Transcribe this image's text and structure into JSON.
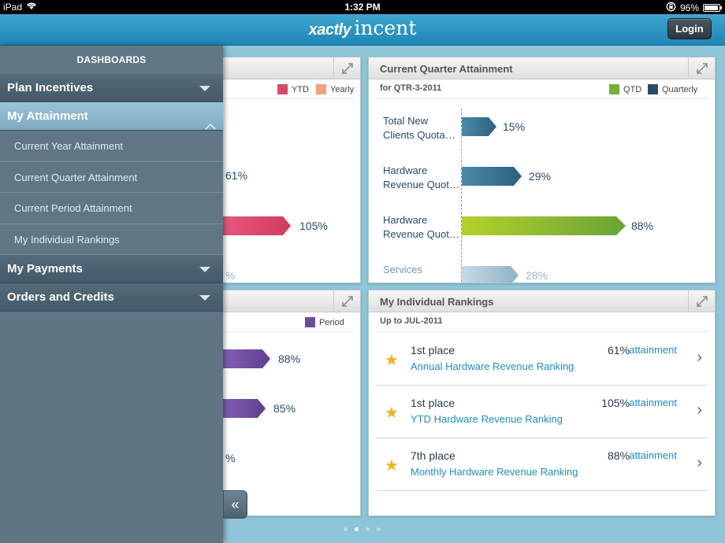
{
  "status": {
    "device": "iPad",
    "time": "1:32 PM",
    "battery": "96%"
  },
  "header": {
    "brand": "xactly",
    "product": "incent",
    "login_label": "Login"
  },
  "sidebar": {
    "title": "DASHBOARDS",
    "sections": [
      {
        "label": "Plan Incentives"
      },
      {
        "label": "My Attainment"
      },
      {
        "label": "My Payments"
      },
      {
        "label": "Orders and Credits"
      }
    ],
    "items": [
      {
        "label": "Current Year Attainment"
      },
      {
        "label": "Current Quarter Attainment"
      },
      {
        "label": "Current Period Attainment"
      },
      {
        "label": "My Individual Rankings"
      }
    ]
  },
  "year_panel": {
    "legend": [
      {
        "label": "YTD",
        "color": "#d9486b"
      },
      {
        "label": "Yearly",
        "color": "#f5a07a"
      }
    ],
    "values": [
      "61%",
      "105%",
      "%"
    ]
  },
  "quarter_panel": {
    "title": "Current Quarter Attainment",
    "subtitle": "for QTR-3-2011",
    "legend": [
      {
        "label": "QTD",
        "color": "#7aad3a"
      },
      {
        "label": "Quarterly",
        "color": "#2e4a66"
      }
    ],
    "bars": [
      {
        "label_line1": "Total New",
        "label_line2": "Clients Quota…",
        "value": 15,
        "pct": "15%"
      },
      {
        "label_line1": "Hardware",
        "label_line2": "Revenue Quot…",
        "value": 29,
        "pct": "29%"
      },
      {
        "label_line1": "Hardware",
        "label_line2": "Revenue Quot…",
        "value": 88,
        "pct": "88%"
      },
      {
        "label_line1": "Services",
        "label_line2": "",
        "value": 28,
        "pct": "28%"
      }
    ]
  },
  "period_panel": {
    "legend": [
      {
        "label": "Period",
        "color": "#6c4a9e"
      }
    ],
    "values": [
      "88%",
      "85%",
      "%"
    ]
  },
  "rankings_panel": {
    "title": "My Individual Rankings",
    "subtitle": "Up to JUL-2011",
    "attainment_label": "attainment",
    "rows": [
      {
        "place": "1st place",
        "name": "Annual Hardware Revenue Ranking",
        "pct": "61%"
      },
      {
        "place": "1st place",
        "name": "YTD Hardware Revenue Ranking",
        "pct": "105%"
      },
      {
        "place": "7th place",
        "name": "Monthly Hardware Revenue Ranking",
        "pct": "88%"
      }
    ]
  }
}
